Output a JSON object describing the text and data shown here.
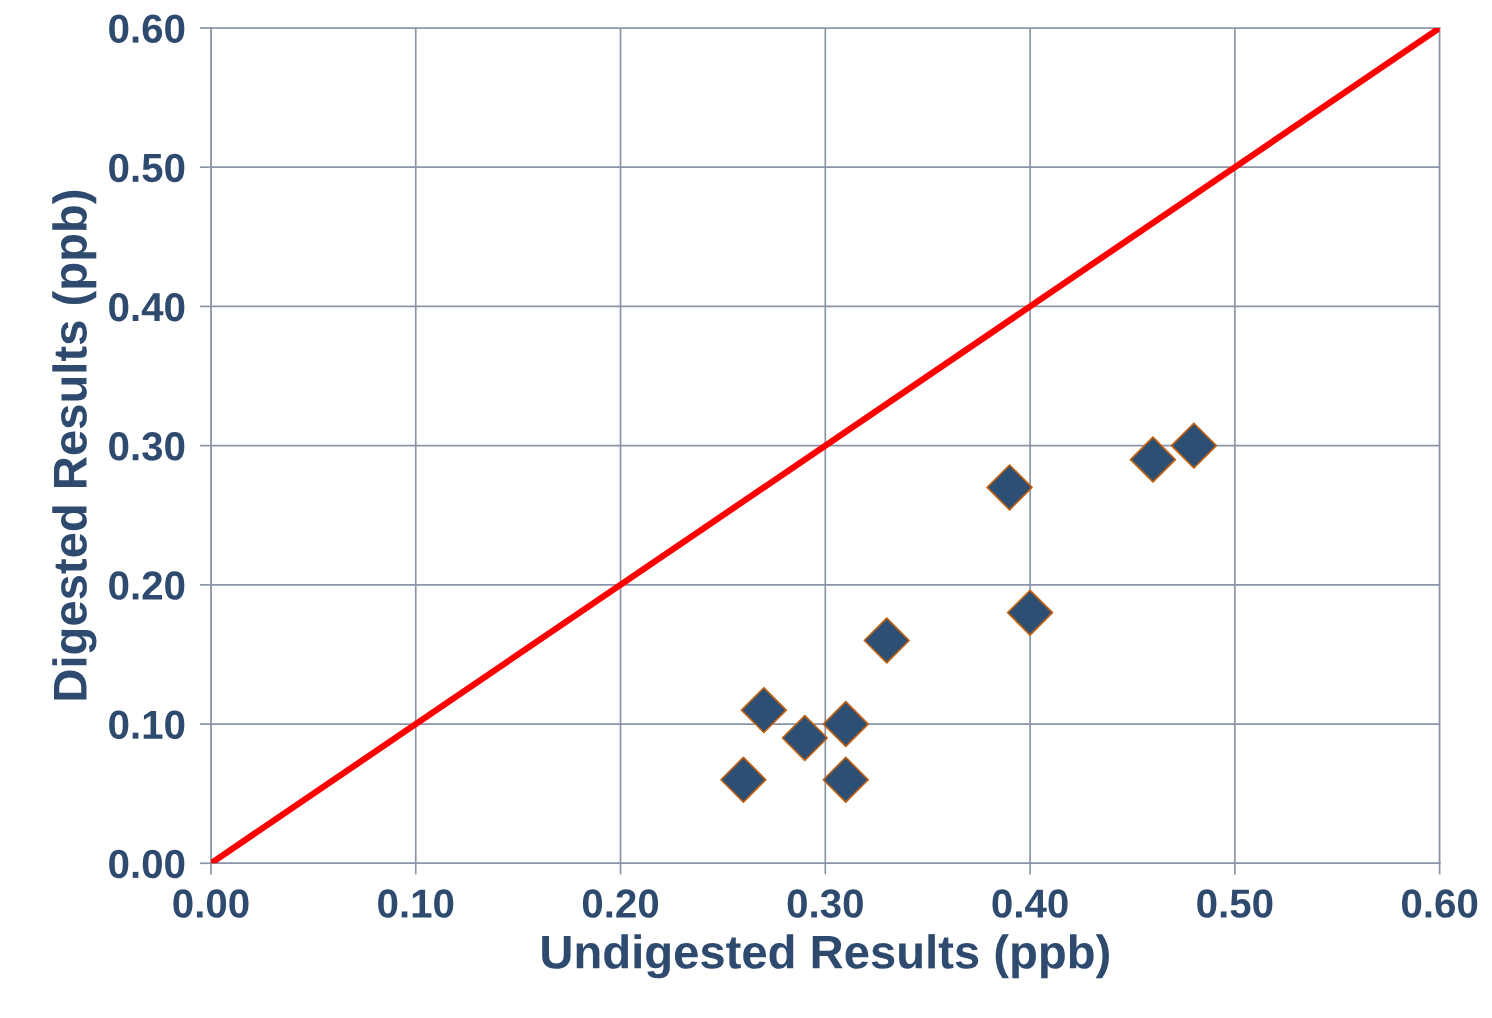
{
  "chart_data": {
    "type": "scatter",
    "xlabel": "Undigested Results (ppb)",
    "ylabel": "Digested Results (ppb)",
    "xlim": [
      0,
      0.6
    ],
    "ylim": [
      0,
      0.6
    ],
    "xticks": [
      {
        "value": 0,
        "label": "0.00"
      },
      {
        "value": 0.1,
        "label": "0.10"
      },
      {
        "value": 0.2,
        "label": "0.20"
      },
      {
        "value": 0.3,
        "label": "0.30"
      },
      {
        "value": 0.4,
        "label": "0.40"
      },
      {
        "value": 0.5,
        "label": "0.50"
      },
      {
        "value": 0.6,
        "label": "0.60"
      }
    ],
    "yticks": [
      {
        "value": 0,
        "label": "0.00"
      },
      {
        "value": 0.1,
        "label": "0.10"
      },
      {
        "value": 0.2,
        "label": "0.20"
      },
      {
        "value": 0.3,
        "label": "0.30"
      },
      {
        "value": 0.4,
        "label": "0.40"
      },
      {
        "value": 0.5,
        "label": "0.50"
      },
      {
        "value": 0.6,
        "label": "0.60"
      }
    ],
    "grid": true,
    "series": [
      {
        "color": "#2e4f74",
        "marker": "diamond",
        "x": [
          0.26,
          0.27,
          0.29,
          0.31,
          0.31,
          0.33,
          0.39,
          0.4,
          0.46,
          0.48
        ],
        "values": [
          0.06,
          0.11,
          0.09,
          0.1,
          0.06,
          0.16,
          0.27,
          0.18,
          0.29,
          0.3
        ]
      },
      {
        "type": "line",
        "color": "#ff0000",
        "line_style": "solid",
        "x": [
          0,
          0.6
        ],
        "values": [
          0,
          0.6
        ]
      }
    ]
  }
}
